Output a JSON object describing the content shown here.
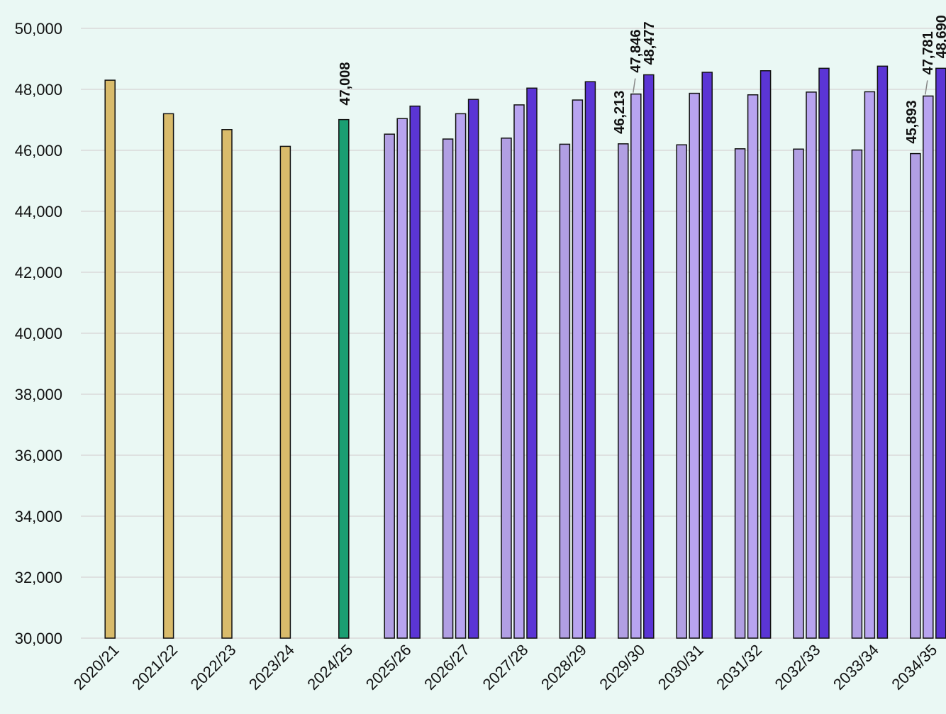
{
  "chart_data": {
    "type": "bar",
    "ylim": [
      30000,
      50000
    ],
    "yticks": [
      "30,000",
      "32,000",
      "34,000",
      "36,000",
      "38,000",
      "40,000",
      "42,000",
      "44,000",
      "46,000",
      "48,000",
      "50,000"
    ],
    "ytick_values": [
      30000,
      32000,
      34000,
      36000,
      38000,
      40000,
      42000,
      44000,
      46000,
      48000,
      50000
    ],
    "grid": true,
    "colors": {
      "actual": "#d9bb6b",
      "current": "#1a9e72",
      "projection_low": "#b19fe3",
      "projection_mid": "#b8a4f0",
      "projection_high": "#5b35d5",
      "grid": "#d9d9d9",
      "background": "#eaf8f4"
    },
    "categories": [
      "2020/21",
      "2021/22",
      "2022/23",
      "2023/24",
      "2024/25",
      "2025/26",
      "2026/27",
      "2027/28",
      "2028/29",
      "2029/30",
      "2030/31",
      "2031/32",
      "2032/33",
      "2033/34",
      "2034/35"
    ],
    "single_values": [
      48300,
      47200,
      46680,
      46130,
      47008
    ],
    "single_colors": [
      "actual",
      "actual",
      "actual",
      "actual",
      "current"
    ],
    "single_labels": [
      "",
      "",
      "",
      "",
      "47,008"
    ],
    "projections": {
      "low": [
        46530,
        46370,
        46400,
        46200,
        46213,
        46180,
        46050,
        46040,
        46010,
        45893
      ],
      "mid": [
        47040,
        47200,
        47490,
        47650,
        47846,
        47870,
        47820,
        47910,
        47920,
        47781
      ],
      "high": [
        47450,
        47670,
        48040,
        48250,
        48477,
        48560,
        48610,
        48690,
        48760,
        48690
      ]
    },
    "projection_labels": {
      "low": [
        "",
        "",
        "",
        "",
        "46,213",
        "",
        "",
        "",
        "",
        "45,893"
      ],
      "mid": [
        "",
        "",
        "",
        "",
        "47,846",
        "",
        "",
        "",
        "",
        "47,781"
      ],
      "high": [
        "",
        "",
        "",
        "",
        "48,477",
        "",
        "",
        "",
        "",
        "48,690"
      ]
    }
  }
}
